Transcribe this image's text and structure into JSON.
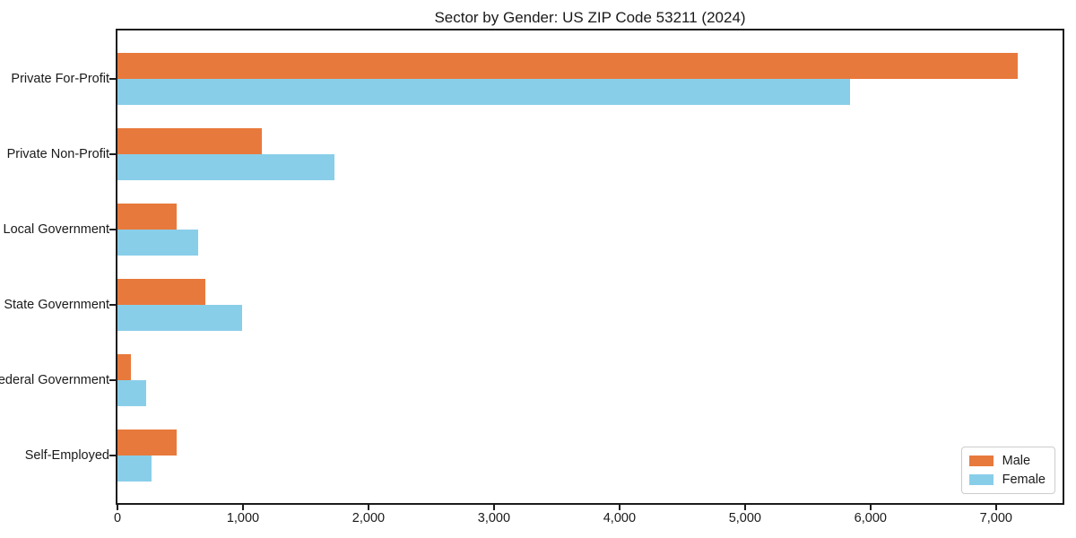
{
  "chart_data": {
    "type": "bar",
    "orientation": "horizontal",
    "title": "Sector by Gender: US ZIP Code 53211 (2024)",
    "xlabel": "",
    "ylabel": "",
    "grid": false,
    "background": "#ffffff",
    "spine_color": "#1b1b1b",
    "categories": [
      "Private For-Profit",
      "Private Non-Profit",
      "Local Government",
      "State Government",
      "Federal Government",
      "Self-Employed"
    ],
    "series": [
      {
        "name": "Male",
        "color": "#e8793c",
        "values": [
          7170,
          1150,
          475,
          700,
          105,
          475
        ]
      },
      {
        "name": "Female",
        "color": "#89cee9",
        "values": [
          5840,
          1730,
          645,
          990,
          230,
          275
        ]
      }
    ],
    "xlim": [
      0,
      7530
    ],
    "xticks": [
      {
        "value": 0,
        "label": "0"
      },
      {
        "value": 1000,
        "label": "1,000"
      },
      {
        "value": 2000,
        "label": "2,000"
      },
      {
        "value": 3000,
        "label": "3,000"
      },
      {
        "value": 4000,
        "label": "4,000"
      },
      {
        "value": 5000,
        "label": "5,000"
      },
      {
        "value": 6000,
        "label": "6,000"
      },
      {
        "value": 7000,
        "label": "7,000"
      }
    ],
    "legend": {
      "position": "lower right",
      "labels": [
        "Male",
        "Female"
      ]
    }
  }
}
